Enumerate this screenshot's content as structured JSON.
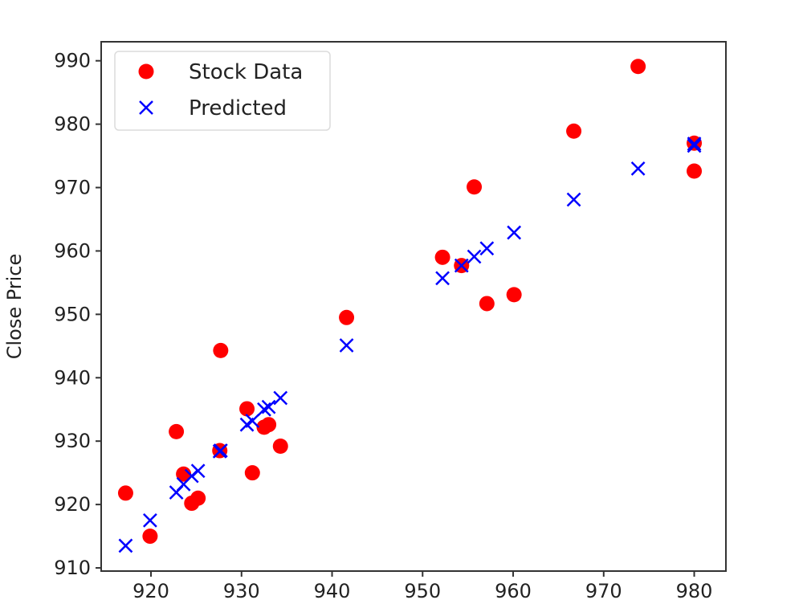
{
  "chart_data": {
    "type": "scatter",
    "title": "",
    "xlabel": "",
    "ylabel": "Close Price",
    "xlim": [
      914.5,
      983.5
    ],
    "ylim": [
      909.5,
      993
    ],
    "xticks": [
      920,
      930,
      940,
      950,
      960,
      970,
      980
    ],
    "yticks": [
      910,
      920,
      930,
      940,
      950,
      960,
      970,
      980,
      990
    ],
    "grid": false,
    "legend": "top-left",
    "series": [
      {
        "name": "Stock Data",
        "marker": "circle",
        "color": "#ff0000",
        "points": [
          [
            917.2,
            921.8
          ],
          [
            919.9,
            915.0
          ],
          [
            922.8,
            931.5
          ],
          [
            923.6,
            924.8
          ],
          [
            924.5,
            920.2
          ],
          [
            925.2,
            921.0
          ],
          [
            927.6,
            928.5
          ],
          [
            927.7,
            944.3
          ],
          [
            930.6,
            935.1
          ],
          [
            931.2,
            925.0
          ],
          [
            932.5,
            932.2
          ],
          [
            933.0,
            932.6
          ],
          [
            934.3,
            929.2
          ],
          [
            941.6,
            949.5
          ],
          [
            952.2,
            959.0
          ],
          [
            954.3,
            957.7
          ],
          [
            955.7,
            970.1
          ],
          [
            957.1,
            951.7
          ],
          [
            960.1,
            953.1
          ],
          [
            966.7,
            978.9
          ],
          [
            973.8,
            989.1
          ],
          [
            980.0,
            972.6
          ],
          [
            980.0,
            977.0
          ]
        ]
      },
      {
        "name": "Predicted",
        "marker": "x",
        "color": "#0000ff",
        "points": [
          [
            917.2,
            913.5
          ],
          [
            919.9,
            917.5
          ],
          [
            922.8,
            921.9
          ],
          [
            923.6,
            923.2
          ],
          [
            924.5,
            924.5
          ],
          [
            925.2,
            925.3
          ],
          [
            927.6,
            928.4
          ],
          [
            927.7,
            928.5
          ],
          [
            930.6,
            932.6
          ],
          [
            931.2,
            933.2
          ],
          [
            932.5,
            935.0
          ],
          [
            933.0,
            935.4
          ],
          [
            934.3,
            936.8
          ],
          [
            941.6,
            945.1
          ],
          [
            952.2,
            955.7
          ],
          [
            954.3,
            957.7
          ],
          [
            955.7,
            959.1
          ],
          [
            957.1,
            960.4
          ],
          [
            960.1,
            962.9
          ],
          [
            966.7,
            968.1
          ],
          [
            973.8,
            973.0
          ],
          [
            980.0,
            976.6
          ],
          [
            980.0,
            976.9
          ]
        ]
      }
    ]
  }
}
